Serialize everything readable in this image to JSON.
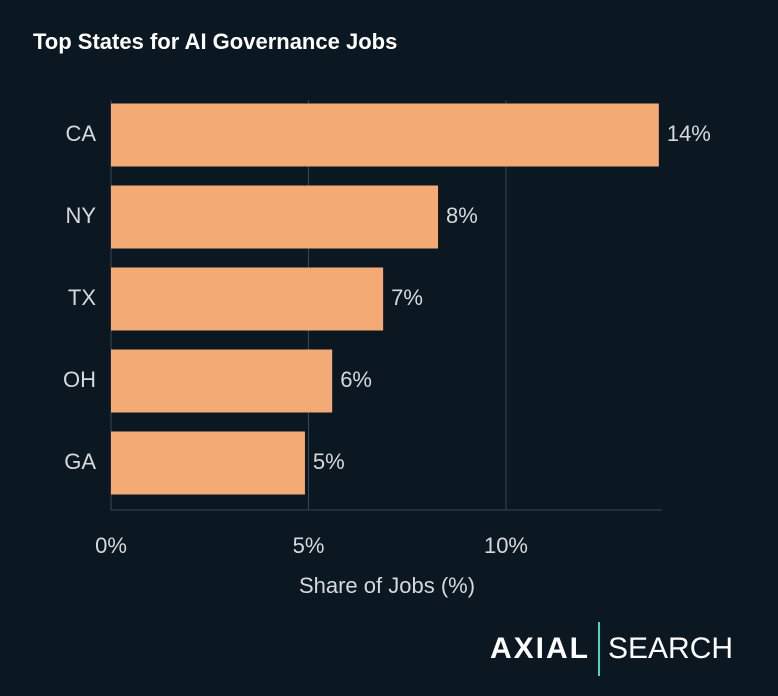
{
  "chart_data": {
    "type": "barh",
    "title": "Top States for AI Governance Jobs",
    "categories": [
      "CA",
      "NY",
      "TX",
      "OH",
      "GA"
    ],
    "values": [
      13.87,
      8.28,
      6.89,
      5.6,
      4.91
    ],
    "value_labels": [
      "14%",
      "8%",
      "7%",
      "6%",
      "5%"
    ],
    "color": "#f4aa74",
    "x_label": "Share of Jobs (%)",
    "xlim": [
      0,
      13.95
    ],
    "xticks": [
      {
        "value": 0,
        "label": "0%"
      },
      {
        "value": 5,
        "label": "5%"
      },
      {
        "value": 10,
        "label": "10%"
      }
    ],
    "grid": true
  },
  "logo": {
    "brand": "AXIAL",
    "product": "SEARCH"
  }
}
